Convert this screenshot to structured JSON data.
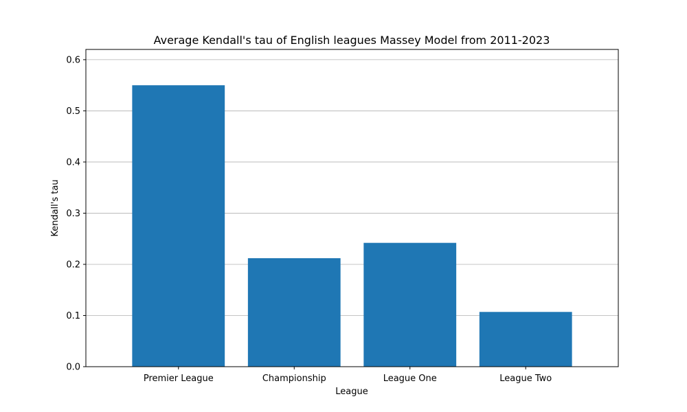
{
  "chart_data": {
    "type": "bar",
    "title": "Average Kendall's tau of English leagues Massey Model from 2011-2023",
    "xlabel": "League",
    "ylabel": "Kendall's tau",
    "categories": [
      "Premier League",
      "Championship",
      "League One",
      "League Two"
    ],
    "values": [
      0.55,
      0.212,
      0.242,
      0.107
    ],
    "ylim": [
      0,
      0.62
    ],
    "yticks": [
      0.0,
      0.1,
      0.2,
      0.3,
      0.4,
      0.5,
      0.6
    ],
    "grid": "y",
    "bar_color": "#1f77b4"
  }
}
